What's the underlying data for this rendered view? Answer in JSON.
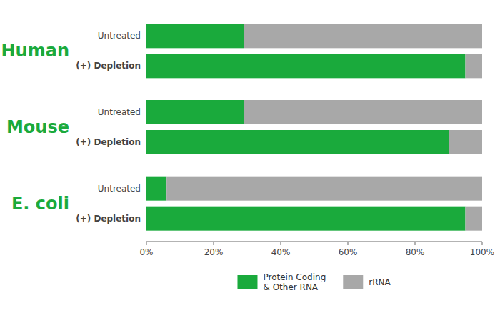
{
  "chart_data": {
    "type": "bar",
    "orientation": "horizontal",
    "stacked": true,
    "categories": [
      "Untreated",
      "(+) Depletion",
      "Untreated",
      "(+) Depletion",
      "Untreated",
      "(+) Depletion"
    ],
    "groups": [
      "Human",
      "Mouse",
      "E. coli"
    ],
    "series": [
      {
        "name": "Protein Coding\n& Other RNA",
        "color": "#1aaa3c",
        "values": [
          29,
          95,
          29,
          90,
          6,
          95
        ]
      },
      {
        "name": "rRNA",
        "color": "#a8a8a8",
        "values": [
          71,
          5,
          71,
          10,
          94,
          5
        ]
      }
    ],
    "xlim": [
      0,
      100
    ],
    "xticks": [
      {
        "value": 0,
        "label": "0%"
      },
      {
        "value": 20,
        "label": "20%"
      },
      {
        "value": 40,
        "label": "40%"
      },
      {
        "value": 60,
        "label": "60%"
      },
      {
        "value": 80,
        "label": "80%"
      },
      {
        "value": 100,
        "label": "100%"
      }
    ],
    "grid": false,
    "legend": "bottom"
  }
}
